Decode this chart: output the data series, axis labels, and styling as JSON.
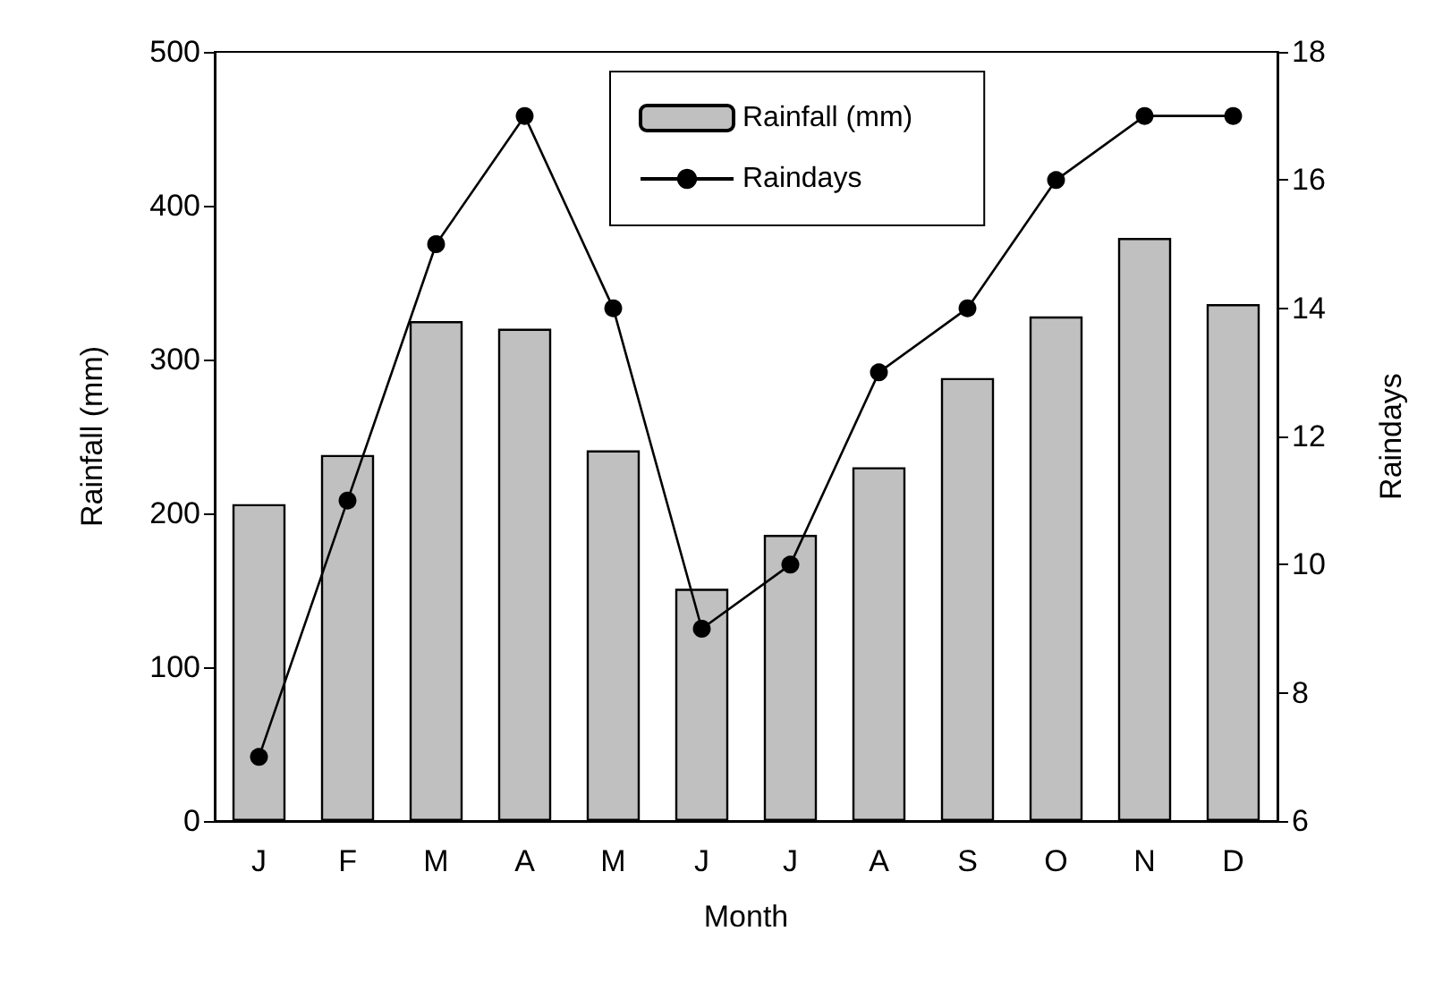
{
  "chart_data": {
    "type": "bar",
    "xlabel": "Month",
    "ylabel": "Rainfall (mm)",
    "y2label": "Raindays",
    "categories": [
      "J",
      "F",
      "M",
      "A",
      "M",
      "J",
      "J",
      "A",
      "S",
      "O",
      "N",
      "D"
    ],
    "series": [
      {
        "name": "Rainfall (mm)",
        "color": "#c0c0c0",
        "values": [
          206,
          238,
          325,
          320,
          241,
          151,
          186,
          230,
          288,
          328,
          379,
          336
        ]
      },
      {
        "name": "Raindays",
        "type": "line",
        "axis": "y2",
        "color": "#000000",
        "marker": "circle",
        "values": [
          7,
          11,
          15,
          17,
          14,
          9,
          10,
          13,
          14,
          16,
          17,
          17
        ]
      }
    ],
    "ylim": [
      0,
      500
    ],
    "yticks": [
      0,
      100,
      200,
      300,
      400,
      500
    ],
    "y2lim": [
      6,
      18
    ],
    "y2ticks": [
      6,
      8,
      10,
      12,
      14,
      16,
      18
    ],
    "legend": "top right",
    "grid": false
  }
}
